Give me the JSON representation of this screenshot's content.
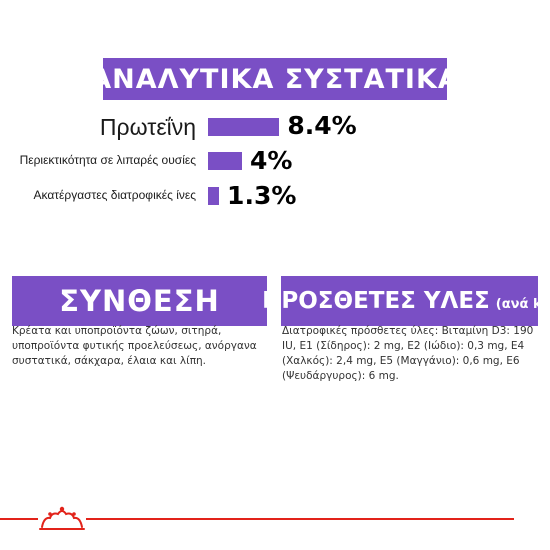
{
  "header": {
    "title": "ΑΝΑΛΥΤΙΚΑ ΣΥΣΤΑΤΙΚΑ"
  },
  "analytical": [
    {
      "label": "Πρωτεΐνη",
      "value": "8.4%",
      "percent": 8.4
    },
    {
      "label": "Περιεκτικότητα σε λιπαρές ουσίες",
      "value": "4%",
      "percent": 4
    },
    {
      "label": "Ακατέργαστες διατροφικές ίνες",
      "value": "1.3%",
      "percent": 1.3
    }
  ],
  "composition": {
    "title": "ΣΥΝΘΕΣΗ",
    "text": "Κρέατα και υποπροϊόντα ζώων, σιτηρά, υποπροϊόντα φυτικής προελεύσεως, ανόργανα συστατικά, σάκχαρα, έλαια και λίπη."
  },
  "additives": {
    "title": "ΠΡΟΣΘΕΤΕΣ ΥΛΕΣ",
    "unit": "(ανά kg)",
    "text": "Διατροφικές πρόσθετες ύλες: Βιταμίνη D3: 190 IU, E1 (Σίδηρος): 2 mg, E2 (Ιώδιο): 0,3 mg, E4 (Χαλκός): 2,4 mg, E5 (Μαγγάνιο): 0,6 mg, E6 (Ψευδάργυρος): 6 mg."
  },
  "colors": {
    "accent": "#7a4fc5",
    "brand_red": "#e2231a"
  },
  "footer": {
    "logo_icon": "crown-icon"
  }
}
